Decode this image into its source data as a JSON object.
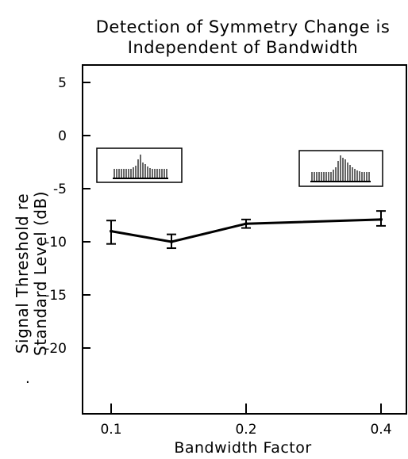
{
  "chart_data": {
    "type": "line",
    "title": [
      "Detection of Symmetry Change is",
      "Independent of Bandwidth"
    ],
    "xlabel": "Bandwidth Factor",
    "ylabel": [
      "Signal Threshold re",
      "Standard Level (dB)"
    ],
    "xticks": [
      "0.1",
      "0.2",
      "0.4"
    ],
    "yticks": [
      "5",
      "0",
      "-5",
      "-10",
      "-15",
      "-20"
    ],
    "ylim": [
      -25,
      7
    ],
    "grid": false,
    "series": [
      {
        "x": [
          "0.1",
          "",
          "0.2",
          "0.4"
        ],
        "y": [
          -9.0,
          -10.0,
          -8.3,
          -7.9
        ],
        "err_low": [
          -10.2,
          -10.6,
          -8.7,
          -8.5
        ],
        "err_high": [
          -8.0,
          -9.3,
          -7.9,
          -7.1
        ]
      }
    ],
    "insets": [
      {
        "label": "narrow-band spectrum with asymmetric peak",
        "near_x": "0.1"
      },
      {
        "label": "wide-band spectrum with asymmetric peak",
        "near_x": "0.4"
      }
    ]
  }
}
